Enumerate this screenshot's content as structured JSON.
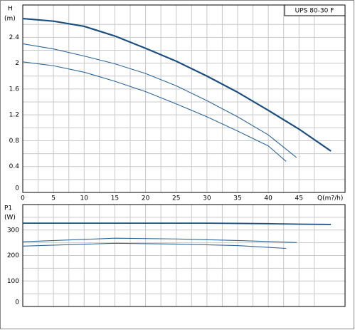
{
  "chart_data": [
    {
      "type": "line",
      "y_label": "H",
      "y_unit": "(m)",
      "x_label": "Q(m?/h)",
      "legend_text": "UPS 80-30  F",
      "xlim": [
        0,
        52.5
      ],
      "xticks": [
        0,
        5,
        10,
        15,
        20,
        25,
        30,
        35,
        40,
        45
      ],
      "ylim": [
        0,
        2.9
      ],
      "yticks": [
        0,
        0.4,
        0.8,
        1.2,
        1.6,
        2,
        2.4
      ],
      "grid": true,
      "minor_grid": true,
      "series": [
        {
          "color": "#1b4f80",
          "linewidth": 2.2,
          "x": [
            0,
            5,
            10,
            15,
            20,
            25,
            30,
            35,
            40,
            45,
            50.2
          ],
          "values": [
            2.69,
            2.65,
            2.57,
            2.42,
            2.23,
            2.03,
            1.8,
            1.55,
            1.27,
            0.98,
            0.64
          ]
        },
        {
          "color": "#2f6699",
          "linewidth": 1.1,
          "x": [
            0,
            5,
            10,
            15,
            20,
            25,
            30,
            35,
            40,
            44.6
          ],
          "values": [
            2.3,
            2.22,
            2.11,
            1.99,
            1.84,
            1.65,
            1.42,
            1.17,
            0.89,
            0.54
          ]
        },
        {
          "color": "#2f6699",
          "linewidth": 1.1,
          "x": [
            0,
            5,
            10,
            15,
            20,
            25,
            30,
            35,
            40,
            42.9
          ],
          "values": [
            2.02,
            1.96,
            1.86,
            1.72,
            1.56,
            1.37,
            1.17,
            0.95,
            0.72,
            0.48
          ]
        }
      ]
    },
    {
      "type": "line",
      "y_label": "P1",
      "y_unit": "(W)",
      "xlim": [
        0,
        52.5
      ],
      "ylim": [
        0,
        400
      ],
      "yticks": [
        0,
        100,
        200,
        300
      ],
      "grid": true,
      "minor_grid": true,
      "series": [
        {
          "color": "#1b4f80",
          "linewidth": 1.8,
          "x": [
            0,
            10,
            20,
            30,
            35,
            40,
            45,
            50.2
          ],
          "values": [
            327,
            327,
            327,
            327,
            326,
            325,
            323,
            322
          ]
        },
        {
          "color": "#2f6699",
          "linewidth": 1.1,
          "x": [
            0,
            15,
            25,
            35,
            44.6
          ],
          "values": [
            254,
            268,
            265,
            259,
            251
          ]
        },
        {
          "color": "#2f6699",
          "linewidth": 1.1,
          "x": [
            0,
            15,
            25,
            35,
            42.9
          ],
          "values": [
            237,
            248,
            245,
            239,
            228
          ]
        }
      ]
    }
  ]
}
